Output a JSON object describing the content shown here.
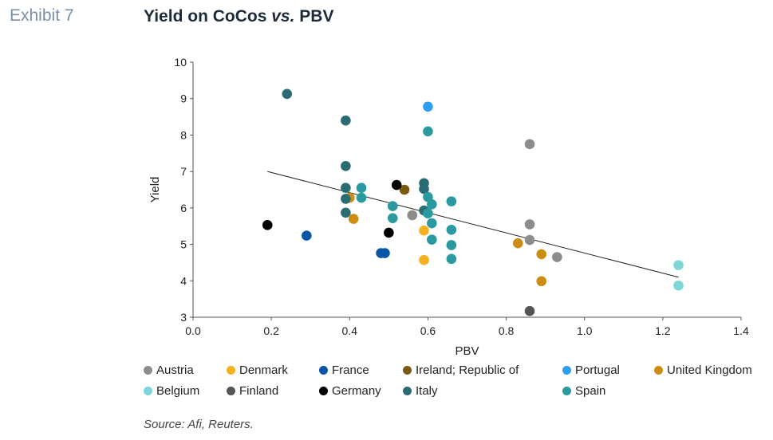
{
  "header": {
    "exhibit": "Exhibit 7",
    "title_main": "Yield on CoCos ",
    "title_vs": "vs.",
    "title_end": " PBV"
  },
  "source": "Source: Afi, Reuters.",
  "chart_data": {
    "type": "scatter",
    "xlabel": "PBV",
    "ylabel": "Yield",
    "xlim": [
      0.0,
      1.4
    ],
    "ylim": [
      3,
      10
    ],
    "xticks": [
      "0.0",
      "0.2",
      "0.4",
      "0.6",
      "0.8",
      "1.0",
      "1.2",
      "1.4"
    ],
    "yticks": [
      "3",
      "4",
      "5",
      "6",
      "7",
      "8",
      "9",
      "10"
    ],
    "grid": false,
    "legend_position": "bottom",
    "trendline": {
      "x": [
        0.19,
        1.24
      ],
      "y": [
        7.0,
        4.1
      ],
      "color": "#222222"
    },
    "series": [
      {
        "name": "Austria",
        "color": "#8c8c8c",
        "points": [
          [
            0.56,
            5.8
          ],
          [
            0.86,
            7.75
          ],
          [
            0.86,
            5.55
          ],
          [
            0.86,
            5.12
          ],
          [
            0.93,
            4.65
          ]
        ]
      },
      {
        "name": "Denmark",
        "color": "#f5b120",
        "points": [
          [
            0.59,
            5.38
          ],
          [
            0.59,
            4.57
          ]
        ]
      },
      {
        "name": "France",
        "color": "#0b56a4",
        "points": [
          [
            0.29,
            5.24
          ],
          [
            0.48,
            4.76
          ],
          [
            0.49,
            4.76
          ]
        ]
      },
      {
        "name": "Ireland; Republic of",
        "color": "#7a5a10",
        "points": [
          [
            0.54,
            6.5
          ]
        ]
      },
      {
        "name": "Portugal",
        "color": "#2e9ff0",
        "points": [
          [
            0.6,
            8.78
          ]
        ]
      },
      {
        "name": "United Kingdom",
        "color": "#cc8e12",
        "points": [
          [
            0.4,
            6.28
          ],
          [
            0.41,
            5.7
          ],
          [
            0.83,
            5.03
          ],
          [
            0.89,
            4.73
          ],
          [
            0.89,
            3.99
          ]
        ]
      },
      {
        "name": "Belgium",
        "color": "#7fd6d8",
        "points": [
          [
            1.24,
            4.43
          ],
          [
            1.24,
            3.87
          ]
        ]
      },
      {
        "name": "Finland",
        "color": "#555555",
        "points": [
          [
            0.86,
            3.17
          ]
        ]
      },
      {
        "name": "Germany",
        "color": "#000000",
        "points": [
          [
            0.19,
            5.53
          ],
          [
            0.5,
            5.32
          ],
          [
            0.52,
            6.63
          ]
        ]
      },
      {
        "name": "Italy",
        "color": "#2b6b73",
        "points": [
          [
            0.24,
            9.13
          ],
          [
            0.39,
            8.4
          ],
          [
            0.39,
            7.15
          ],
          [
            0.39,
            6.55
          ],
          [
            0.39,
            6.25
          ],
          [
            0.39,
            5.87
          ],
          [
            0.59,
            6.68
          ],
          [
            0.59,
            6.52
          ],
          [
            0.59,
            5.93
          ]
        ]
      },
      {
        "name": "Spain",
        "color": "#2a9aa0",
        "points": [
          [
            0.6,
            8.1
          ],
          [
            0.43,
            6.55
          ],
          [
            0.43,
            6.28
          ],
          [
            0.51,
            6.05
          ],
          [
            0.51,
            5.72
          ],
          [
            0.6,
            6.3
          ],
          [
            0.61,
            6.1
          ],
          [
            0.6,
            5.85
          ],
          [
            0.61,
            5.58
          ],
          [
            0.61,
            5.13
          ],
          [
            0.66,
            6.18
          ],
          [
            0.66,
            5.4
          ],
          [
            0.66,
            4.98
          ],
          [
            0.66,
            4.6
          ]
        ]
      }
    ]
  }
}
